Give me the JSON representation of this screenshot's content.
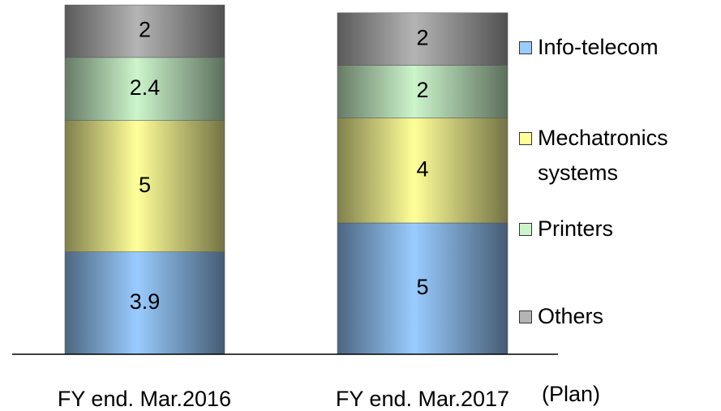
{
  "chart_data": {
    "type": "stacked_bar",
    "categories": [
      "FY end. Mar.2016",
      "FY end. Mar.2017"
    ],
    "annotation": "(Plan)",
    "series": [
      {
        "name": "Info-telecom",
        "color": "#99ccff",
        "values": [
          3.9,
          5.0
        ]
      },
      {
        "name": "Mechatronics systems",
        "color": "#ffff99",
        "values": [
          5.0,
          4.0
        ]
      },
      {
        "name": "Printers",
        "color": "#ccf5cc",
        "values": [
          2.4,
          2.0
        ]
      },
      {
        "name": "Others",
        "color": "#b4b4b4",
        "values": [
          2.0,
          2.0
        ]
      }
    ]
  }
}
